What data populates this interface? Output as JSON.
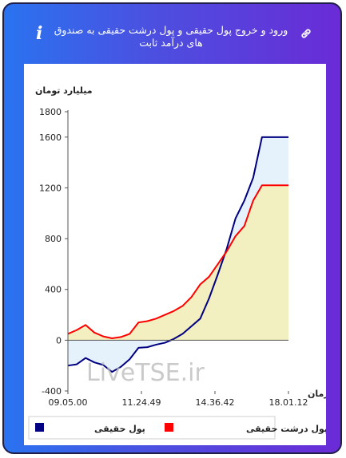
{
  "header": {
    "title": "ورود و خروج پول حقیقی و پول درشت حقیقی به صندوق های درآمد ثابت",
    "icons": [
      "info-icon",
      "link-icon"
    ]
  },
  "watermark": "LiveTSE.ir",
  "colors": {
    "real_money": "#000080",
    "big_real_money": "#ff0000",
    "area_real_money": "#e6f2fb",
    "area_big_real_money": "#f2eebd"
  },
  "chart_data": {
    "type": "line",
    "ylabel": "میلیارد تومان",
    "xlabel": "زمان",
    "ylim": [
      -400,
      1800
    ],
    "y_ticks": [
      -400,
      0,
      400,
      800,
      1200,
      1600,
      1800
    ],
    "x_ticks": [
      "09.05.00",
      "11.24.49",
      "14.36.42",
      "18.01.12"
    ],
    "grid": false,
    "legend_position": "bottom",
    "series": [
      {
        "name": "پول حقیقی",
        "x": [
          0,
          4,
          8,
          12,
          16,
          20,
          24,
          28,
          32,
          36,
          40,
          44,
          48,
          52,
          56,
          60,
          64,
          68,
          72,
          76,
          80,
          84,
          88,
          92,
          96,
          100
        ],
        "values": [
          -200,
          -190,
          -140,
          -175,
          -195,
          -250,
          -210,
          -150,
          -60,
          -55,
          -35,
          -20,
          10,
          50,
          110,
          170,
          330,
          520,
          720,
          960,
          1100,
          1280,
          1600,
          1600,
          1600,
          1600
        ]
      },
      {
        "name": "پول درشت حقیقی",
        "x": [
          0,
          4,
          8,
          12,
          16,
          20,
          24,
          28,
          32,
          36,
          40,
          44,
          48,
          52,
          56,
          60,
          64,
          68,
          72,
          76,
          80,
          84,
          88,
          92,
          96,
          100
        ],
        "values": [
          50,
          80,
          120,
          60,
          30,
          15,
          25,
          50,
          140,
          150,
          170,
          200,
          230,
          270,
          340,
          440,
          500,
          600,
          700,
          820,
          900,
          1100,
          1220,
          1220,
          1220,
          1220
        ]
      }
    ]
  }
}
